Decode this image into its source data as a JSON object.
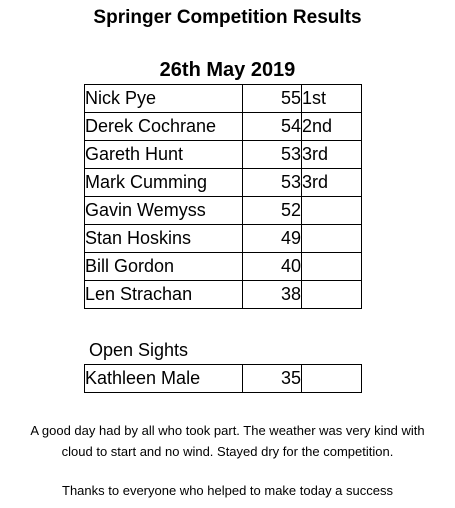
{
  "header": {
    "title": "Springer Competition Results",
    "date": "26th May 2019"
  },
  "results": [
    {
      "name": "Nick Pye",
      "score": "55",
      "place": "1st"
    },
    {
      "name": "Derek Cochrane",
      "score": "54",
      "place": "2nd"
    },
    {
      "name": "Gareth Hunt",
      "score": "53",
      "place": "3rd"
    },
    {
      "name": "Mark Cumming",
      "score": "53",
      "place": "3rd"
    },
    {
      "name": "Gavin Wemyss",
      "score": "52",
      "place": ""
    },
    {
      "name": "Stan Hoskins",
      "score": "49",
      "place": ""
    },
    {
      "name": "Bill Gordon",
      "score": "40",
      "place": ""
    },
    {
      "name": "Len Strachan",
      "score": "38",
      "place": ""
    }
  ],
  "open_sights": {
    "title": "Open Sights",
    "results": [
      {
        "name": "Kathleen Male",
        "score": "35",
        "place": ""
      }
    ]
  },
  "notes": {
    "line1": "A good day had by all who took part.  The weather was very kind with",
    "line2": "cloud to start and no wind.  Stayed dry for the competition.",
    "thanks": "Thanks to everyone who helped to make today a success"
  }
}
